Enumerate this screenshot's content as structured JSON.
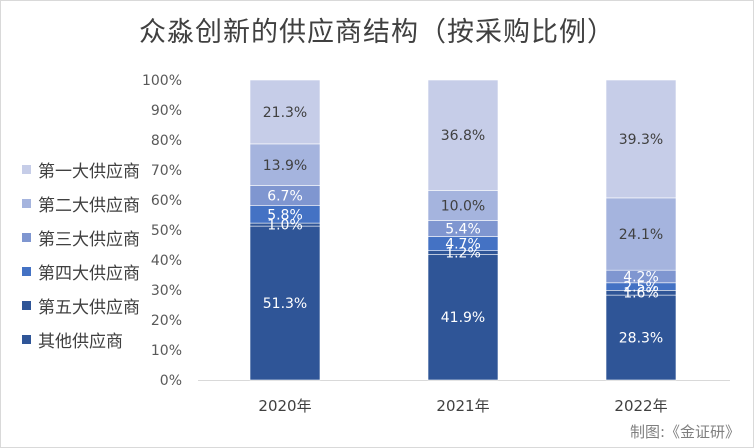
{
  "chart_data": {
    "type": "bar",
    "stacked": true,
    "title": "众淼创新的供应商结构（按采购比例）",
    "categories": [
      "2020年",
      "2021年",
      "2022年"
    ],
    "ylim": [
      0,
      100
    ],
    "yticks": [
      "0%",
      "10%",
      "20%",
      "30%",
      "40%",
      "50%",
      "60%",
      "70%",
      "80%",
      "90%",
      "100%"
    ],
    "grid": false,
    "legend_position": "left",
    "series": [
      {
        "name": "其他供应商",
        "color": "#2f5597",
        "label_color": "#ffffff",
        "values": [
          51.3,
          41.9,
          28.3
        ],
        "labels": [
          "51.3%",
          "41.9%",
          "28.3%"
        ]
      },
      {
        "name": "第五大供应商",
        "color": "#2f5597",
        "label_color": "#ffffff",
        "values": [
          1.0,
          1.2,
          1.6
        ],
        "labels": [
          "1.0%",
          "1.2%",
          "1.6%"
        ]
      },
      {
        "name": "第四大供应商",
        "color": "#4472c4",
        "label_color": "#ffffff",
        "values": [
          5.8,
          4.7,
          2.5
        ],
        "labels": [
          "5.8%",
          "4.7%",
          "2.5%"
        ]
      },
      {
        "name": "第三大供应商",
        "color": "#7f96d0",
        "label_color": "#ffffff",
        "values": [
          6.7,
          5.4,
          4.2
        ],
        "labels": [
          "6.7%",
          "5.4%",
          "4.2%"
        ]
      },
      {
        "name": "第二大供应商",
        "color": "#a5b4de",
        "label_color": "#404040",
        "values": [
          13.9,
          10.0,
          24.1
        ],
        "labels": [
          "13.9%",
          "10.0%",
          "24.1%"
        ]
      },
      {
        "name": "第一大供应商",
        "color": "#c6cde8",
        "label_color": "#404040",
        "values": [
          21.3,
          36.8,
          39.3
        ],
        "labels": [
          "21.3%",
          "36.8%",
          "39.3%"
        ]
      }
    ]
  },
  "legend_order": [
    "第一大供应商",
    "第二大供应商",
    "第三大供应商",
    "第四大供应商",
    "第五大供应商",
    "其他供应商"
  ],
  "legend_colors": [
    "#c6cde8",
    "#a5b4de",
    "#7f96d0",
    "#4472c4",
    "#2f5597",
    "#2f5597"
  ],
  "credit": "制图:《金证研》"
}
